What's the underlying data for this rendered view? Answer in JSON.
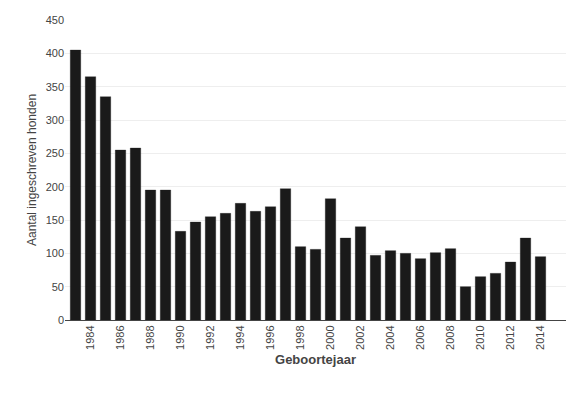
{
  "chart_data": {
    "type": "bar",
    "x": [
      1983,
      1984,
      1985,
      1986,
      1987,
      1988,
      1989,
      1990,
      1991,
      1992,
      1993,
      1994,
      1995,
      1996,
      1997,
      1998,
      1999,
      2000,
      2001,
      2002,
      2003,
      2004,
      2005,
      2006,
      2007,
      2008,
      2009,
      2010,
      2011,
      2012,
      2013,
      2014
    ],
    "values": [
      405,
      365,
      335,
      255,
      258,
      195,
      195,
      133,
      147,
      155,
      160,
      175,
      163,
      170,
      197,
      110,
      106,
      182,
      123,
      140,
      97,
      104,
      100,
      92,
      101,
      107,
      50,
      65,
      70,
      87,
      123,
      95
    ],
    "color": "#1a1a1a",
    "xlabel": "Geboortejaar",
    "ylabel": "Aantal ingeschreven honden",
    "xlim": [
      1982.3,
      2015.7
    ],
    "xticks": [
      1984,
      1986,
      1988,
      1990,
      1992,
      1994,
      1996,
      1998,
      2000,
      2002,
      2004,
      2006,
      2008,
      2010,
      2012,
      2014
    ],
    "ylim": [
      0,
      450
    ],
    "yticks": [
      0,
      50,
      100,
      150,
      200,
      250,
      300,
      350,
      400,
      450
    ],
    "grid": true
  }
}
